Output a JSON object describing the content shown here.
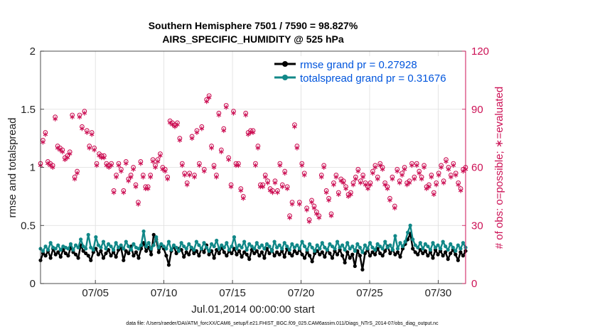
{
  "chart_data": {
    "type": "line",
    "title": "Southern Hemisphere 7501 / 7590 = 98.827%",
    "subtitle": "AIRS_SPECIFIC_HUMIDITY @ 525 hPa",
    "xlabel": "Jul.01,2014 00:00:00 start",
    "ylabel": "rmse and totalspread",
    "ylabel_right": "# of obs: o=possible; ∗=evaluated",
    "footnote": "data file: /Users/raeder/DAI/ATM_forcXX/CAM6_setup/f.e21.FHIST_BGC.f09_025.CAM6assim.011/Diags_NTrS_2014-07/obs_diag_output.nc",
    "xlim": [
      1,
      32
    ],
    "ylim": [
      0,
      2
    ],
    "ylim_right": [
      0,
      120
    ],
    "yticks": [
      "0",
      "0.5",
      "1",
      "1.5",
      "2"
    ],
    "yticks_right": [
      "0",
      "30",
      "60",
      "90",
      "120"
    ],
    "xticks": [
      {
        "day": 5,
        "label": "07/05"
      },
      {
        "day": 10,
        "label": "07/10"
      },
      {
        "day": 15,
        "label": "07/15"
      },
      {
        "day": 20,
        "label": "07/20"
      },
      {
        "day": 25,
        "label": "07/25"
      },
      {
        "day": 30,
        "label": "07/30"
      }
    ],
    "grid": true,
    "legend_position": "top-right",
    "series": [
      {
        "name": "rmse grand pr = 0.27928",
        "axis": "left",
        "color": "#000000",
        "marker": "filled-circle",
        "values": [
          0.2,
          0.26,
          0.24,
          0.28,
          0.22,
          0.3,
          0.25,
          0.27,
          0.23,
          0.29,
          0.26,
          0.24,
          0.31,
          0.27,
          0.25,
          0.22,
          0.33,
          0.28,
          0.26,
          0.24,
          0.2,
          0.27,
          0.3,
          0.25,
          0.28,
          0.22,
          0.26,
          0.29,
          0.24,
          0.27,
          0.23,
          0.29,
          0.31,
          0.2,
          0.28,
          0.26,
          0.32,
          0.24,
          0.27,
          0.22,
          0.3,
          0.35,
          0.28,
          0.31,
          0.25,
          0.42,
          0.38,
          0.27,
          0.33,
          0.3,
          0.24,
          0.16,
          0.28,
          0.32,
          0.26,
          0.3,
          0.29,
          0.23,
          0.27,
          0.25,
          0.31,
          0.26,
          0.28,
          0.24,
          0.3,
          0.27,
          0.33,
          0.25,
          0.28,
          0.22,
          0.29,
          0.26,
          0.31,
          0.27,
          0.24,
          0.28,
          0.26,
          0.3,
          0.25,
          0.28,
          0.23,
          0.27,
          0.25,
          0.21,
          0.29,
          0.26,
          0.28,
          0.24,
          0.27,
          0.22,
          0.3,
          0.26,
          0.29,
          0.24,
          0.27,
          0.25,
          0.28,
          0.23,
          0.3,
          0.26,
          0.24,
          0.28,
          0.26,
          0.29,
          0.25,
          0.22,
          0.27,
          0.24,
          0.19,
          0.26,
          0.28,
          0.25,
          0.27,
          0.23,
          0.29,
          0.26,
          0.22,
          0.28,
          0.25,
          0.29,
          0.24,
          0.18,
          0.27,
          0.22,
          0.25,
          0.15,
          0.28,
          0.24,
          0.12,
          0.26,
          0.29,
          0.24,
          0.27,
          0.25,
          0.3,
          0.26,
          0.24,
          0.28,
          0.32,
          0.26,
          0.29,
          0.25,
          0.27,
          0.23,
          0.3,
          0.34,
          0.38,
          0.43,
          0.3,
          0.27,
          0.25,
          0.29,
          0.26,
          0.28,
          0.24,
          0.27,
          0.22,
          0.29,
          0.25,
          0.28,
          0.24,
          0.27,
          0.21,
          0.26,
          0.29,
          0.25,
          0.2,
          0.27,
          0.24,
          0.28
        ]
      },
      {
        "name": "totalspread grand pr = 0.31676",
        "axis": "left",
        "color": "#118888",
        "marker": "filled-circle",
        "values": [
          0.3,
          0.28,
          0.32,
          0.29,
          0.35,
          0.31,
          0.3,
          0.33,
          0.29,
          0.32,
          0.31,
          0.3,
          0.34,
          0.29,
          0.33,
          0.31,
          0.38,
          0.32,
          0.3,
          0.42,
          0.31,
          0.29,
          0.4,
          0.33,
          0.31,
          0.36,
          0.3,
          0.34,
          0.32,
          0.29,
          0.35,
          0.31,
          0.33,
          0.3,
          0.36,
          0.32,
          0.29,
          0.34,
          0.31,
          0.3,
          0.33,
          0.45,
          0.32,
          0.35,
          0.3,
          0.33,
          0.4,
          0.31,
          0.34,
          0.32,
          0.3,
          0.36,
          0.29,
          0.33,
          0.31,
          0.28,
          0.35,
          0.32,
          0.3,
          0.34,
          0.31,
          0.29,
          0.36,
          0.33,
          0.3,
          0.35,
          0.31,
          0.28,
          0.34,
          0.32,
          0.37,
          0.3,
          0.33,
          0.31,
          0.35,
          0.29,
          0.32,
          0.4,
          0.3,
          0.33,
          0.31,
          0.36,
          0.29,
          0.34,
          0.32,
          0.3,
          0.35,
          0.31,
          0.33,
          0.3,
          0.34,
          0.32,
          0.28,
          0.36,
          0.31,
          0.33,
          0.3,
          0.35,
          0.32,
          0.29,
          0.34,
          0.31,
          0.33,
          0.3,
          0.36,
          0.32,
          0.29,
          0.34,
          0.31,
          0.28,
          0.33,
          0.3,
          0.35,
          0.31,
          0.29,
          0.34,
          0.32,
          0.3,
          0.36,
          0.31,
          0.33,
          0.29,
          0.35,
          0.3,
          0.32,
          0.28,
          0.34,
          0.31,
          0.27,
          0.33,
          0.3,
          0.35,
          0.31,
          0.29,
          0.34,
          0.32,
          0.3,
          0.36,
          0.31,
          0.33,
          0.29,
          0.41,
          0.3,
          0.35,
          0.32,
          0.36,
          0.44,
          0.5,
          0.38,
          0.33,
          0.31,
          0.35,
          0.3,
          0.34,
          0.32,
          0.29,
          0.35,
          0.31,
          0.33,
          0.3,
          0.36,
          0.32,
          0.29,
          0.34,
          0.31,
          0.28,
          0.33,
          0.3,
          0.35,
          0.31
        ]
      },
      {
        "name": "obs possible",
        "axis": "right",
        "color": "#cc1155",
        "marker": "open-circle",
        "values": [
          62,
          74,
          78,
          63,
          62,
          61,
          86,
          71,
          70,
          69,
          65,
          66,
          68,
          87,
          55,
          58,
          87,
          81,
          89,
          79,
          71,
          78,
          70,
          62,
          67,
          66,
          66,
          62,
          61,
          62,
          48,
          56,
          62,
          59,
          48,
          63,
          54,
          56,
          60,
          51,
          42,
          63,
          56,
          50,
          50,
          56,
          64,
          61,
          64,
          67,
          60,
          59,
          55,
          84,
          83,
          82,
          83,
          75,
          62,
          57,
          52,
          57,
          76,
          56,
          79,
          62,
          81,
          59,
          95,
          97,
          71,
          61,
          56,
          88,
          69,
          80,
          92,
          65,
          51,
          89,
          62,
          62,
          49,
          45,
          88,
          78,
          79,
          79,
          62,
          71,
          51,
          51,
          56,
          53,
          49,
          48,
          53,
          48,
          62,
          51,
          58,
          50,
          35,
          42,
          82,
          71,
          42,
          62,
          57,
          39,
          33,
          43,
          40,
          37,
          35,
          56,
          61,
          48,
          44,
          36,
          52,
          56,
          47,
          54,
          53,
          50,
          46,
          47,
          52,
          55,
          59,
          53,
          56,
          52,
          50,
          52,
          58,
          61,
          55,
          62,
          60,
          52,
          50,
          44,
          55,
          40,
          59,
          53,
          57,
          60,
          52,
          53,
          62,
          55,
          62,
          58,
          55,
          61,
          50,
          51,
          56,
          47,
          52,
          57,
          61,
          53,
          64,
          60,
          56,
          62,
          57,
          52,
          49,
          59,
          60
        ]
      },
      {
        "name": "obs evaluated",
        "axis": "right",
        "color": "#cc1155",
        "marker": "asterisk",
        "values": [
          61,
          73,
          77,
          62,
          61,
          60,
          85,
          70,
          69,
          68,
          64,
          65,
          67,
          86,
          54,
          57,
          86,
          80,
          88,
          78,
          70,
          77,
          69,
          61,
          66,
          65,
          65,
          61,
          60,
          61,
          47,
          55,
          61,
          58,
          47,
          62,
          53,
          55,
          59,
          50,
          41,
          62,
          55,
          49,
          49,
          55,
          63,
          60,
          63,
          66,
          59,
          58,
          54,
          83,
          82,
          81,
          82,
          74,
          61,
          56,
          51,
          56,
          75,
          55,
          78,
          61,
          80,
          58,
          94,
          96,
          70,
          60,
          55,
          87,
          68,
          79,
          91,
          64,
          50,
          88,
          61,
          61,
          48,
          44,
          87,
          77,
          78,
          78,
          61,
          70,
          50,
          50,
          55,
          52,
          48,
          47,
          52,
          47,
          61,
          50,
          57,
          49,
          34,
          41,
          81,
          70,
          41,
          61,
          56,
          38,
          32,
          42,
          39,
          36,
          34,
          55,
          60,
          47,
          43,
          35,
          51,
          55,
          46,
          53,
          52,
          49,
          45,
          46,
          51,
          54,
          58,
          52,
          55,
          51,
          49,
          51,
          57,
          60,
          54,
          61,
          59,
          51,
          49,
          43,
          54,
          39,
          58,
          52,
          56,
          59,
          51,
          52,
          61,
          54,
          61,
          57,
          54,
          60,
          49,
          50,
          55,
          46,
          51,
          56,
          60,
          52,
          63,
          59,
          55,
          61,
          56,
          51,
          48,
          58,
          59
        ]
      }
    ]
  }
}
